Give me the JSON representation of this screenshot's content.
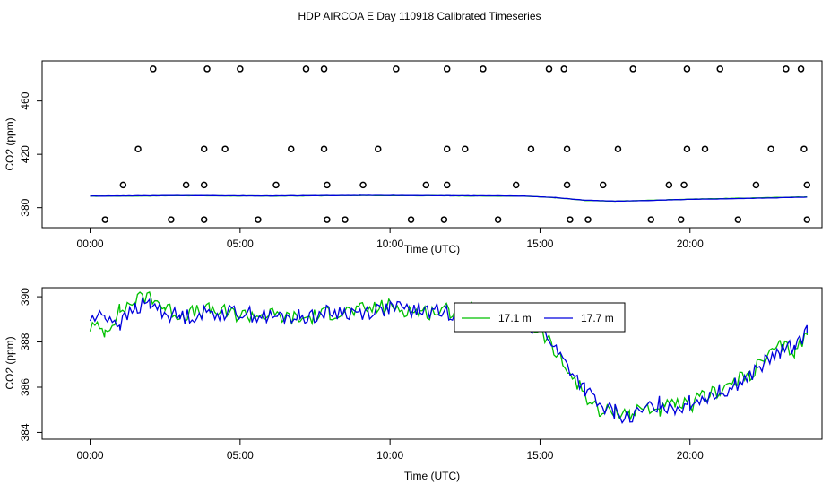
{
  "title": "HDP AIRCOA E  Day 110918  Calibrated Timeseries",
  "colors": {
    "green": "#00c000",
    "blue": "#0000dd",
    "points": "#000000",
    "axis": "#000000"
  },
  "chart_data": [
    {
      "type": "scatter",
      "xlabel": "Time (UTC)",
      "ylabel": "CO2 (ppm)",
      "xlim": [
        -1.6,
        24.4
      ],
      "ylim": [
        365,
        490
      ],
      "xticks": [
        0,
        5,
        10,
        15,
        20
      ],
      "xticklabels": [
        "00:00",
        "05:00",
        "10:00",
        "15:00",
        "20:00"
      ],
      "yticks": [
        380,
        420,
        460
      ],
      "yticklabels": [
        "380",
        "420",
        "460"
      ],
      "rows": [
        {
          "y": 484,
          "x": [
            2.1,
            3.9,
            5.0,
            7.2,
            7.8,
            10.2,
            11.9,
            13.1,
            15.3,
            15.8,
            18.1,
            19.9,
            21.0,
            23.2,
            23.7
          ]
        },
        {
          "y": 424,
          "x": [
            1.6,
            3.8,
            4.5,
            6.7,
            7.8,
            9.6,
            11.9,
            12.5,
            14.7,
            15.9,
            17.6,
            19.9,
            20.5,
            22.7,
            23.8
          ]
        },
        {
          "y": 397,
          "x": [
            1.1,
            3.2,
            3.8,
            6.2,
            7.9,
            9.1,
            11.2,
            11.9,
            14.2,
            15.9,
            17.1,
            19.3,
            19.8,
            22.2,
            23.9
          ]
        },
        {
          "y": 371,
          "x": [
            0.5,
            2.7,
            3.8,
            5.6,
            7.9,
            8.5,
            10.7,
            11.8,
            13.6,
            16.0,
            16.6,
            18.7,
            19.7,
            21.6,
            23.9
          ]
        }
      ],
      "series": [
        {
          "color": "green",
          "x": [
            0,
            3,
            6,
            9,
            12,
            14.5,
            15.5,
            16.5,
            17.5,
            18.5,
            20,
            22,
            23.9
          ],
          "y": [
            388.6,
            389.0,
            388.7,
            389.1,
            388.9,
            388.6,
            387.5,
            385.5,
            384.9,
            385.4,
            386.4,
            387.2,
            388.1
          ]
        },
        {
          "color": "blue",
          "x": [
            0,
            3,
            6,
            9,
            12,
            14.5,
            15.5,
            16.5,
            17.5,
            18.5,
            20,
            22,
            23.9
          ],
          "y": [
            388.7,
            389.1,
            388.8,
            389.2,
            389.0,
            388.7,
            387.6,
            385.6,
            384.9,
            385.3,
            386.2,
            387.0,
            387.9
          ]
        }
      ]
    },
    {
      "type": "line",
      "xlabel": "Time (UTC)",
      "ylabel": "CO2 (ppm)",
      "xlim": [
        -1.6,
        24.4
      ],
      "ylim": [
        383.7,
        390.4
      ],
      "xticks": [
        0,
        5,
        10,
        15,
        20
      ],
      "xticklabels": [
        "00:00",
        "05:00",
        "10:00",
        "15:00",
        "20:00"
      ],
      "yticks": [
        384,
        386,
        388,
        390
      ],
      "yticklabels": [
        "384",
        "386",
        "388",
        "390"
      ],
      "legend_position": "top-right",
      "series": [
        {
          "name": "17.1 m",
          "color": "green",
          "x": [
            0,
            0.5,
            1,
            1.5,
            2,
            2.5,
            3,
            4,
            5,
            6,
            7,
            8,
            9,
            10,
            11,
            12,
            13,
            14,
            14.5,
            15,
            15.3,
            15.6,
            16,
            16.5,
            17,
            17.5,
            18,
            18.5,
            19,
            19.5,
            20,
            20.5,
            21,
            21.5,
            22,
            22.5,
            23,
            23.5,
            23.9
          ],
          "y": [
            388.7,
            388.5,
            389.4,
            389.8,
            390.1,
            389.5,
            389.2,
            389.4,
            389.2,
            389.2,
            389.0,
            389.3,
            389.4,
            389.6,
            389.3,
            389.4,
            389.4,
            389.1,
            388.8,
            388.5,
            388.0,
            387.3,
            386.6,
            385.7,
            384.8,
            385.0,
            384.8,
            385.1,
            385.0,
            385.2,
            385.2,
            385.6,
            385.9,
            386.2,
            386.6,
            387.2,
            387.8,
            387.6,
            388.3
          ]
        },
        {
          "name": "17.7 m",
          "color": "blue",
          "x": [
            0,
            0.5,
            1,
            1.5,
            2,
            2.5,
            3,
            4,
            5,
            6,
            7,
            8,
            9,
            10,
            11,
            12,
            13,
            14,
            14.5,
            15,
            15.3,
            15.6,
            16,
            16.5,
            17,
            17.5,
            18,
            18.5,
            19,
            19.5,
            20,
            20.5,
            21,
            21.5,
            22,
            22.5,
            23,
            23.5,
            23.9
          ],
          "y": [
            389.0,
            389.2,
            388.8,
            389.5,
            389.7,
            389.3,
            389.1,
            389.3,
            389.3,
            389.1,
            389.1,
            389.3,
            389.3,
            389.5,
            389.4,
            389.3,
            389.3,
            389.0,
            388.8,
            388.6,
            388.2,
            387.5,
            386.8,
            385.9,
            385.1,
            384.9,
            384.6,
            385.0,
            385.3,
            385.1,
            385.3,
            385.6,
            385.8,
            386.1,
            386.5,
            387.1,
            387.5,
            387.9,
            388.4
          ]
        }
      ]
    }
  ]
}
